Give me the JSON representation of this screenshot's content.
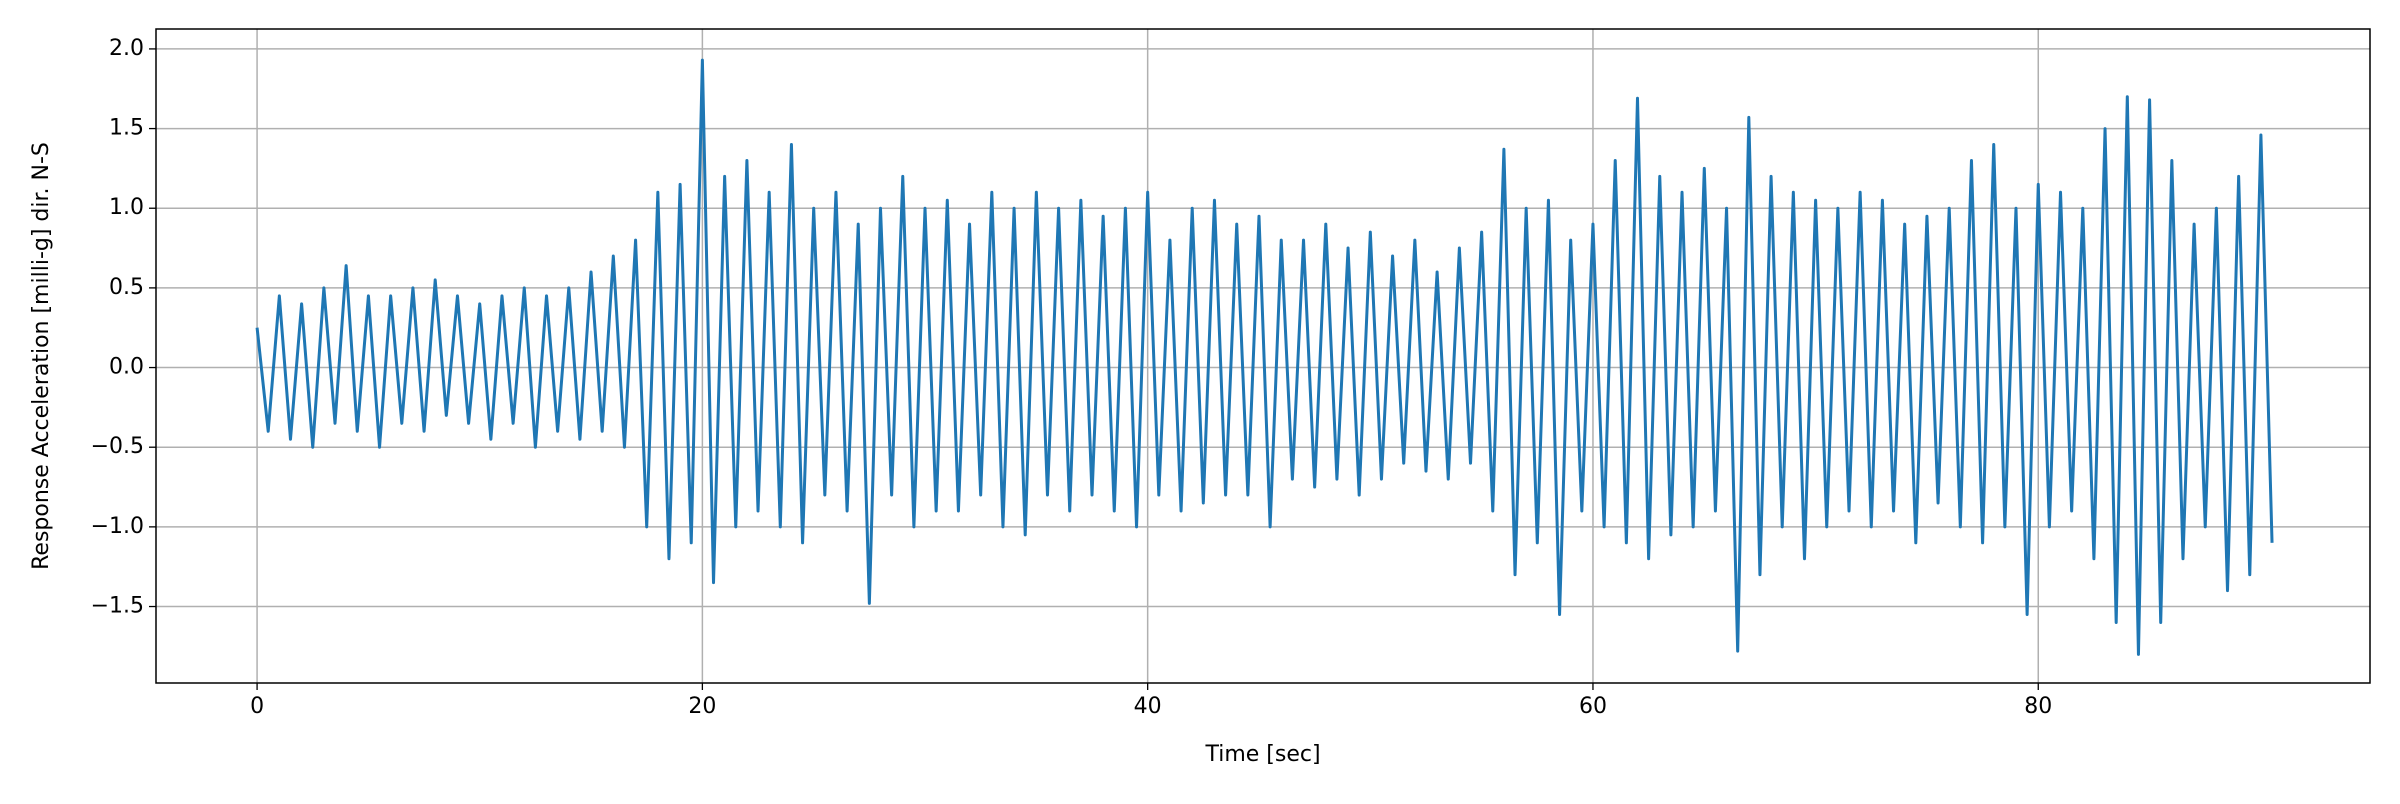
{
  "chart_data": {
    "type": "line",
    "xlabel": "Time [sec]",
    "ylabel": "Response Acceleration [milli-g] dir. N-S",
    "color": "#1f77b4",
    "grid": true,
    "xlim": [
      -4.54,
      94.9
    ],
    "ylim": [
      -1.98,
      2.125
    ],
    "xticks": [
      0,
      20,
      40,
      60,
      80
    ],
    "yticks": [
      {
        "value": -1.5,
        "label": "−1.5"
      },
      {
        "value": -1.0,
        "label": "−1.0"
      },
      {
        "value": -0.5,
        "label": "−0.5"
      },
      {
        "value": 0.0,
        "label": "0.0"
      },
      {
        "value": 0.5,
        "label": "0.5"
      },
      {
        "value": 1.0,
        "label": "1.0"
      },
      {
        "value": 1.5,
        "label": "1.5"
      },
      {
        "value": 2.0,
        "label": "2.0"
      }
    ],
    "x": [
      0,
      0.5,
      1,
      1.5,
      2,
      2.5,
      3,
      3.5,
      4,
      4.5,
      5,
      5.5,
      6,
      6.5,
      7,
      7.5,
      8,
      8.5,
      9,
      9.5,
      10,
      10.5,
      11,
      11.5,
      12,
      12.5,
      13,
      13.5,
      14,
      14.5,
      15,
      15.5,
      16,
      16.5,
      17,
      17.5,
      18,
      18.5,
      19,
      19.5,
      20,
      20.5,
      21,
      21.5,
      22,
      22.5,
      23,
      23.5,
      24,
      24.5,
      25,
      25.5,
      26,
      26.5,
      27,
      27.5,
      28,
      28.5,
      29,
      29.5,
      30,
      30.5,
      31,
      31.5,
      32,
      32.5,
      33,
      33.5,
      34,
      34.5,
      35,
      35.5,
      36,
      36.5,
      37,
      37.5,
      38,
      38.5,
      39,
      39.5,
      40,
      40.5,
      41,
      41.5,
      42,
      42.5,
      43,
      43.5,
      44,
      44.5,
      45,
      45.5,
      46,
      46.5,
      47,
      47.5,
      48,
      48.5,
      49,
      49.5,
      50,
      50.5,
      51,
      51.5,
      52,
      52.5,
      53,
      53.5,
      54,
      54.5,
      55,
      55.5,
      56,
      56.5,
      57,
      57.5,
      58,
      58.5,
      59,
      59.5,
      60,
      60.5,
      61,
      61.5,
      62,
      62.5,
      63,
      63.5,
      64,
      64.5,
      65,
      65.5,
      66,
      66.5,
      67,
      67.5,
      68,
      68.5,
      69,
      69.5,
      70,
      70.5,
      71,
      71.5,
      72,
      72.5,
      73,
      73.5,
      74,
      74.5,
      75,
      75.5,
      76,
      76.5,
      77,
      77.5,
      78,
      78.5,
      79,
      79.5,
      80,
      80.5,
      81,
      81.5,
      82,
      82.5,
      83,
      83.5,
      84,
      84.5,
      85,
      85.5,
      86,
      86.5,
      87,
      87.5,
      88,
      88.5,
      89,
      89.5,
      90,
      90.5
    ],
    "values": [
      0.25,
      -0.4,
      0.45,
      -0.45,
      0.4,
      -0.5,
      0.5,
      -0.35,
      0.64,
      -0.4,
      0.45,
      -0.5,
      0.45,
      -0.35,
      0.5,
      -0.4,
      0.55,
      -0.3,
      0.45,
      -0.35,
      0.4,
      -0.45,
      0.45,
      -0.35,
      0.5,
      -0.5,
      0.45,
      -0.4,
      0.5,
      -0.45,
      0.6,
      -0.4,
      0.7,
      -0.5,
      0.8,
      -1.0,
      1.1,
      -1.2,
      1.15,
      -1.1,
      1.93,
      -1.35,
      1.2,
      -1.0,
      1.3,
      -0.9,
      1.1,
      -1.0,
      1.4,
      -1.1,
      1.0,
      -0.8,
      1.1,
      -0.9,
      0.9,
      -1.48,
      1.0,
      -0.8,
      1.2,
      -1.0,
      1.0,
      -0.9,
      1.05,
      -0.9,
      0.9,
      -0.8,
      1.1,
      -1.0,
      1.0,
      -1.05,
      1.1,
      -0.8,
      1.0,
      -0.9,
      1.05,
      -0.8,
      0.95,
      -0.9,
      1.0,
      -1.0,
      1.1,
      -0.8,
      0.8,
      -0.9,
      1.0,
      -0.85,
      1.05,
      -0.8,
      0.9,
      -0.8,
      0.95,
      -1.0,
      0.8,
      -0.7,
      0.8,
      -0.75,
      0.9,
      -0.7,
      0.75,
      -0.8,
      0.85,
      -0.7,
      0.7,
      -0.6,
      0.8,
      -0.65,
      0.6,
      -0.7,
      0.75,
      -0.6,
      0.85,
      -0.9,
      1.37,
      -1.3,
      1.0,
      -1.1,
      1.05,
      -1.55,
      0.8,
      -0.9,
      0.9,
      -1.0,
      1.3,
      -1.1,
      1.69,
      -1.2,
      1.2,
      -1.05,
      1.1,
      -1.0,
      1.25,
      -0.9,
      1.0,
      -1.78,
      1.57,
      -1.3,
      1.2,
      -1.0,
      1.1,
      -1.2,
      1.05,
      -1.0,
      1.0,
      -0.9,
      1.1,
      -1.0,
      1.05,
      -0.9,
      0.9,
      -1.1,
      0.95,
      -0.85,
      1.0,
      -1.0,
      1.3,
      -1.1,
      1.4,
      -1.0,
      1.0,
      -1.55,
      1.15,
      -1.0,
      1.1,
      -0.9,
      1.0,
      -1.2,
      1.5,
      -1.6,
      1.7,
      -1.8,
      1.68,
      -1.6,
      1.3,
      -1.2,
      0.9,
      -1.0,
      1.0,
      -1.4,
      1.2,
      -1.3,
      1.46,
      -1.1
    ]
  }
}
